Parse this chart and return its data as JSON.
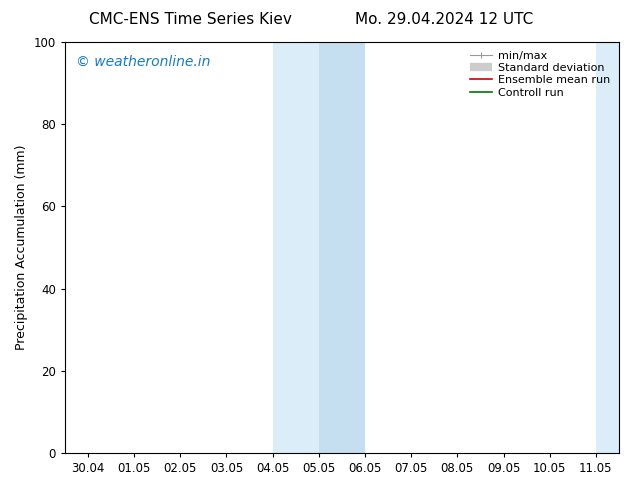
{
  "title_left": "CMC-ENS Time Series Kiev",
  "title_right": "Mo. 29.04.2024 12 UTC",
  "ylabel": "Precipitation Accumulation (mm)",
  "ylim": [
    0,
    100
  ],
  "yticks": [
    0,
    20,
    40,
    60,
    80,
    100
  ],
  "xtick_labels": [
    "30.04",
    "01.05",
    "02.05",
    "03.05",
    "04.05",
    "05.05",
    "06.05",
    "07.05",
    "08.05",
    "09.05",
    "10.05",
    "11.05"
  ],
  "background_color": "#ffffff",
  "plot_bg_color": "#ffffff",
  "watermark_text": "© weatheronline.in",
  "watermark_color": "#1a7abf",
  "shaded_outer": [
    {
      "xstart": 4,
      "xend": 6,
      "color": "#daedf8"
    },
    {
      "xstart": 11,
      "xend": 12,
      "color": "#daedf8"
    }
  ],
  "shaded_inner": [
    {
      "xstart": 5,
      "xend": 6,
      "color": "#c5dff0"
    },
    {
      "xstart": 11.5,
      "xend": 12,
      "color": "#c5dff0"
    }
  ],
  "legend_entries": [
    {
      "label": "min/max",
      "type": "minmax",
      "color": "#999999"
    },
    {
      "label": "Standard deviation",
      "type": "stddev",
      "color": "#cccccc"
    },
    {
      "label": "Ensemble mean run",
      "type": "line",
      "color": "#cc0000",
      "linewidth": 1.2
    },
    {
      "label": "Controll run",
      "type": "line",
      "color": "#007700",
      "linewidth": 1.2
    }
  ],
  "title_fontsize": 11,
  "tick_fontsize": 8.5,
  "ylabel_fontsize": 9,
  "watermark_fontsize": 10,
  "legend_fontsize": 8
}
